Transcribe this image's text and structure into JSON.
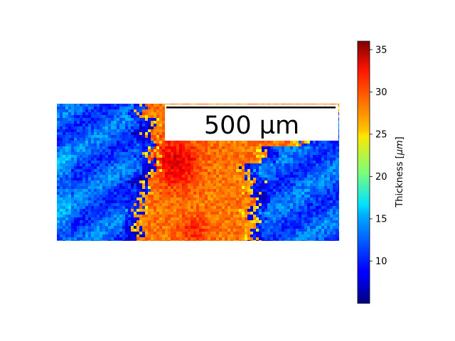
{
  "chart_data": {
    "type": "heatmap",
    "title": "",
    "colormap": "jet",
    "colorbar": {
      "label": "Thickness [μm]",
      "label_parts": {
        "prefix": "Thickness [",
        "unit": "μm",
        "suffix": "]"
      },
      "range": [
        5,
        36
      ],
      "ticks": [
        {
          "value": 10,
          "label": "10"
        },
        {
          "value": 15,
          "label": "15"
        },
        {
          "value": 20,
          "label": "20"
        },
        {
          "value": 25,
          "label": "25"
        },
        {
          "value": 30,
          "label": "30"
        },
        {
          "value": 35,
          "label": "35"
        }
      ]
    },
    "scale_bar": {
      "label": "500 µm"
    },
    "grid": false,
    "axes_visible": false,
    "field_description": {
      "regions": [
        {
          "name": "left",
          "thickness_range": [
            8,
            15
          ]
        },
        {
          "name": "center",
          "thickness_range": [
            26,
            33
          ]
        },
        {
          "name": "right",
          "thickness_range": [
            8,
            15
          ]
        }
      ],
      "peak_thickness": 33,
      "low_thickness": 8
    }
  }
}
